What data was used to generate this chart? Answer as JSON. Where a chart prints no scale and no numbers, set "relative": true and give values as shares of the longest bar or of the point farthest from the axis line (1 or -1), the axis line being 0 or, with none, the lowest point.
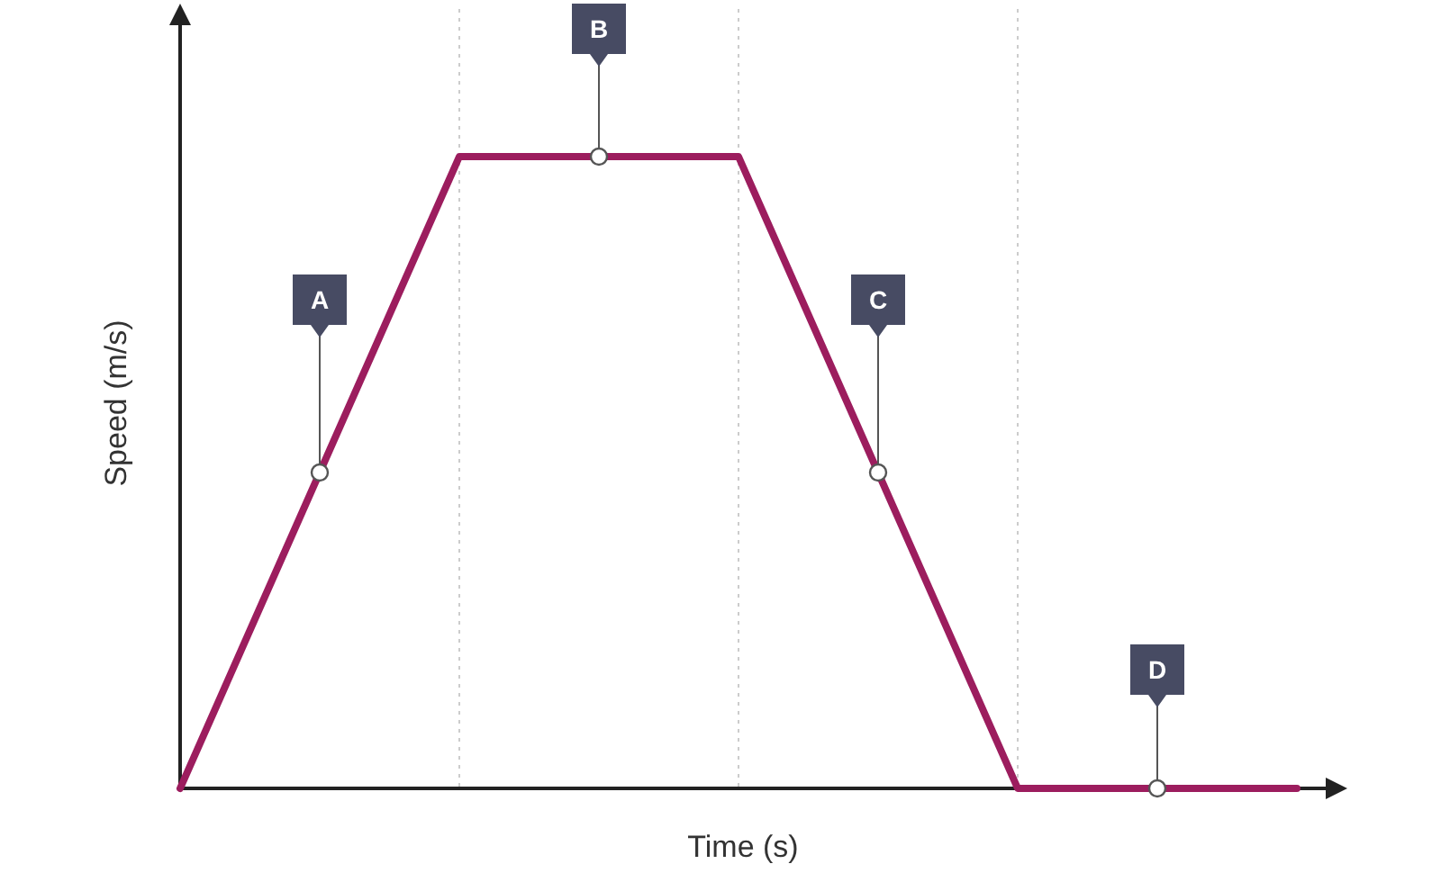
{
  "chart_data": {
    "type": "line",
    "xlabel": "Time (s)",
    "ylabel": "Speed (m/s)",
    "relative": true,
    "categories": [
      null,
      null,
      null,
      null,
      null
    ],
    "series": [
      {
        "color": "#9c1d5e",
        "values": [
          0,
          1,
          1,
          0,
          0
        ]
      }
    ],
    "grid": "x",
    "annotations": [
      {
        "text": "A",
        "y": 0.5
      },
      {
        "text": "B",
        "y": 1
      },
      {
        "text": "C",
        "y": 0.5
      },
      {
        "text": "D",
        "y": 0
      }
    ]
  }
}
